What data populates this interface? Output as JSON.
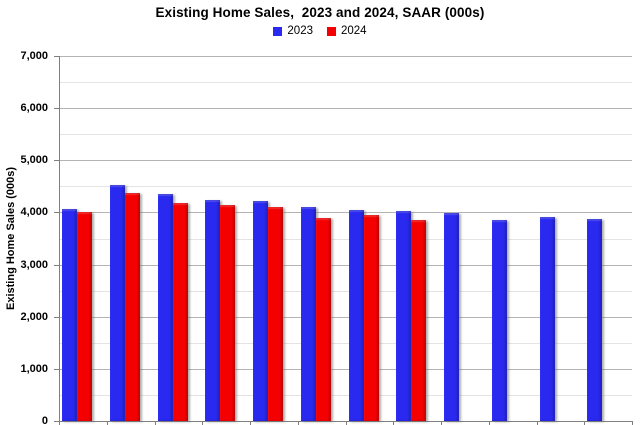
{
  "chart_data": {
    "type": "bar",
    "title": "Existing Home Sales,  2023 and 2024, SAAR (000s)",
    "ylabel": "Existing Home Sales (000s)",
    "ylim": [
      0,
      7000
    ],
    "y_major_tick_interval": 1000,
    "y_minor_grid_interval": 500,
    "y_tick_labels": [
      "0",
      "1,000",
      "2,000",
      "3,000",
      "4,000",
      "5,000",
      "6,000",
      "7,000"
    ],
    "num_groups": 12,
    "x_tick_labels_visible": false,
    "grid": true,
    "legend_position": "top-center",
    "legend": [
      "2023",
      "2024"
    ],
    "series": [
      {
        "name": "2023",
        "color": "#2929F0",
        "values": [
          4070,
          4530,
          4360,
          4230,
          4220,
          4110,
          4050,
          4030,
          3980,
          3850,
          3920,
          3880
        ]
      },
      {
        "name": "2024",
        "color": "#F50000",
        "values": [
          4000,
          4380,
          4190,
          4140,
          4110,
          3890,
          3950,
          3860,
          null,
          null,
          null,
          null
        ]
      }
    ]
  }
}
